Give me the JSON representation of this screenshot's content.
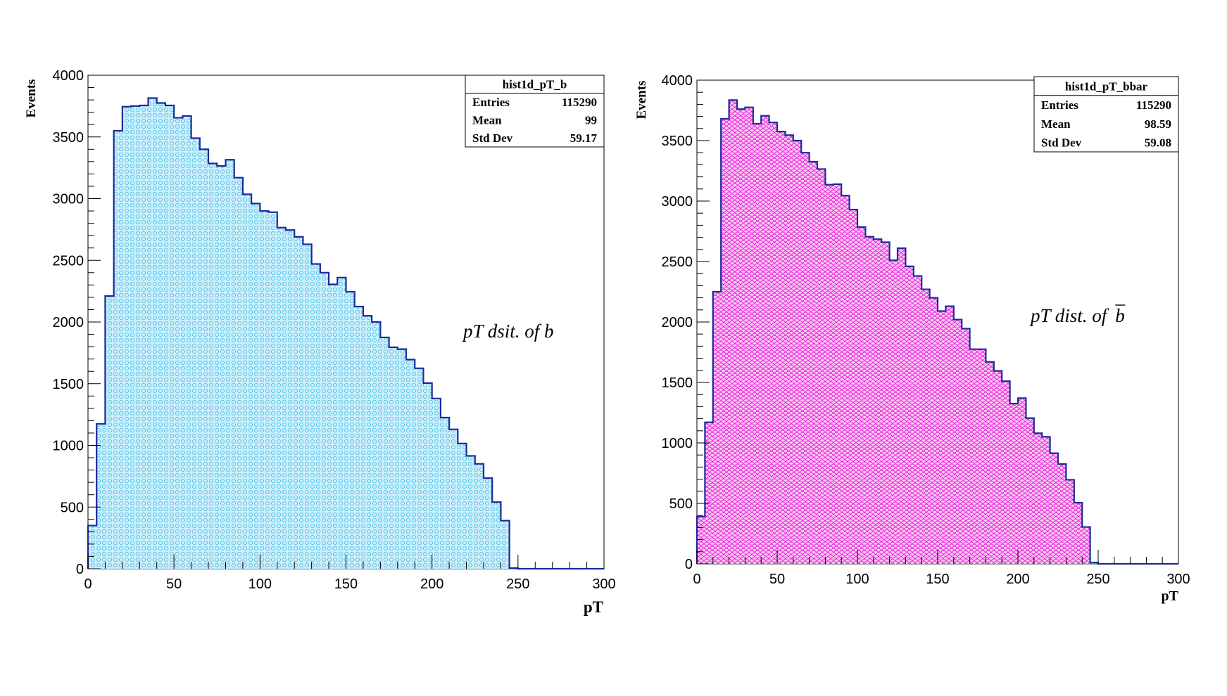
{
  "chart_data": [
    {
      "type": "histogram",
      "stats_box": {
        "title": "hist1d_pT_b",
        "rows": [
          {
            "label": "Entries",
            "value": "115290"
          },
          {
            "label": "Mean",
            "value": "99"
          },
          {
            "label": "Std Dev",
            "value": "59.17"
          }
        ]
      },
      "xlabel": "pT",
      "ylabel": "Events",
      "annotation": "pT dsit. of b",
      "xlim": [
        0,
        300
      ],
      "ylim": [
        0,
        4000
      ],
      "xticks": [
        "0",
        "50",
        "100",
        "150",
        "200",
        "250",
        "300"
      ],
      "yticks": [
        "0",
        "500",
        "1000",
        "1500",
        "2000",
        "2500",
        "3000",
        "3500",
        "4000"
      ],
      "bin_width": 5,
      "values": [
        350,
        1175,
        2210,
        3550,
        3745,
        3750,
        3755,
        3815,
        3775,
        3755,
        3655,
        3670,
        3490,
        3400,
        3285,
        3265,
        3315,
        3170,
        3035,
        2960,
        2900,
        2890,
        2765,
        2745,
        2690,
        2630,
        2470,
        2400,
        2305,
        2360,
        2245,
        2125,
        2050,
        2000,
        1875,
        1795,
        1780,
        1695,
        1625,
        1505,
        1380,
        1225,
        1130,
        1015,
        915,
        850,
        735,
        540,
        390,
        5,
        0,
        0,
        0,
        0,
        0,
        0,
        0,
        0,
        0,
        0
      ],
      "colors": {
        "fill": "#cdeefa",
        "hatch": "#4fc3e6",
        "line": "#1a2a9c"
      }
    },
    {
      "type": "histogram",
      "stats_box": {
        "title": "hist1d_pT_bbar",
        "rows": [
          {
            "label": "Entries",
            "value": "115290"
          },
          {
            "label": "Mean",
            "value": "98.59"
          },
          {
            "label": "Std Dev",
            "value": "59.08"
          }
        ]
      },
      "xlabel": "pT",
      "ylabel": "Events",
      "annotation": "pT dist. of",
      "annotation_symbol": "b",
      "xlim": [
        0,
        300
      ],
      "ylim": [
        0,
        4000
      ],
      "xticks": [
        "0",
        "50",
        "100",
        "150",
        "200",
        "250",
        "300"
      ],
      "yticks": [
        "0",
        "500",
        "1000",
        "1500",
        "2000",
        "2500",
        "3000",
        "3500",
        "4000"
      ],
      "bin_width": 5,
      "values": [
        390,
        1170,
        2250,
        3680,
        3835,
        3760,
        3775,
        3640,
        3705,
        3650,
        3575,
        3545,
        3500,
        3400,
        3325,
        3265,
        3135,
        3140,
        3045,
        2930,
        2785,
        2705,
        2685,
        2660,
        2510,
        2610,
        2460,
        2380,
        2270,
        2200,
        2090,
        2130,
        2020,
        1945,
        1775,
        1775,
        1670,
        1595,
        1510,
        1325,
        1370,
        1205,
        1080,
        1050,
        915,
        825,
        695,
        505,
        305,
        10,
        0,
        0,
        0,
        0,
        0,
        0,
        0,
        0,
        0,
        0
      ],
      "colors": {
        "fill": "#f9c8f3",
        "hatch": "#e600d2",
        "line": "#1a2a9c"
      }
    }
  ]
}
